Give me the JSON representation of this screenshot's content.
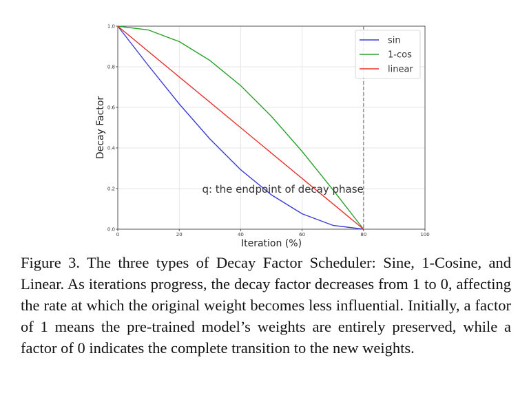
{
  "chart_data": {
    "type": "line",
    "xlabel": "Iteration (%)",
    "ylabel": "Decay Factor",
    "xlim": [
      0,
      100
    ],
    "ylim": [
      0,
      1
    ],
    "xticks": [
      0,
      20,
      40,
      60,
      80,
      100
    ],
    "yticks": [
      0.0,
      0.2,
      0.4,
      0.6,
      0.8,
      1.0
    ],
    "xtick_labels": [
      "0",
      "20",
      "40",
      "60",
      "80",
      "100"
    ],
    "ytick_labels": [
      "0.0",
      "0.2",
      "0.4",
      "0.6",
      "0.8",
      "1.0"
    ],
    "grid": true,
    "legend_position": "top-right",
    "x": [
      0,
      10,
      20,
      30,
      40,
      50,
      60,
      70,
      80
    ],
    "series": [
      {
        "name": "sin",
        "color": "#3b3bd6",
        "values": [
          1.0,
          0.805,
          0.617,
          0.444,
          0.293,
          0.169,
          0.076,
          0.019,
          0.0
        ]
      },
      {
        "name": "1-cos",
        "color": "#2ca02c",
        "values": [
          1.0,
          0.981,
          0.924,
          0.831,
          0.707,
          0.556,
          0.383,
          0.195,
          0.0
        ]
      },
      {
        "name": "linear",
        "color": "#e8302a",
        "values": [
          1.0,
          0.875,
          0.75,
          0.625,
          0.5,
          0.375,
          0.25,
          0.125,
          0.0
        ]
      }
    ],
    "vline": {
      "x": 80,
      "style": "dashed",
      "color": "#888888"
    },
    "annotation": {
      "text": "q: the endpoint of decay phase",
      "x": 80,
      "y": 0.18
    }
  },
  "caption": "Figure 3.  The three types of Decay Factor Scheduler: Sine, 1-Cosine, and Linear.  As iterations progress, the decay factor decreases from 1 to 0, affecting the rate at which the original weight becomes less influential.  Initially, a factor of 1 means the pre-trained model’s weights are entirely preserved, while a factor of 0 indicates the complete transition to the new weights."
}
